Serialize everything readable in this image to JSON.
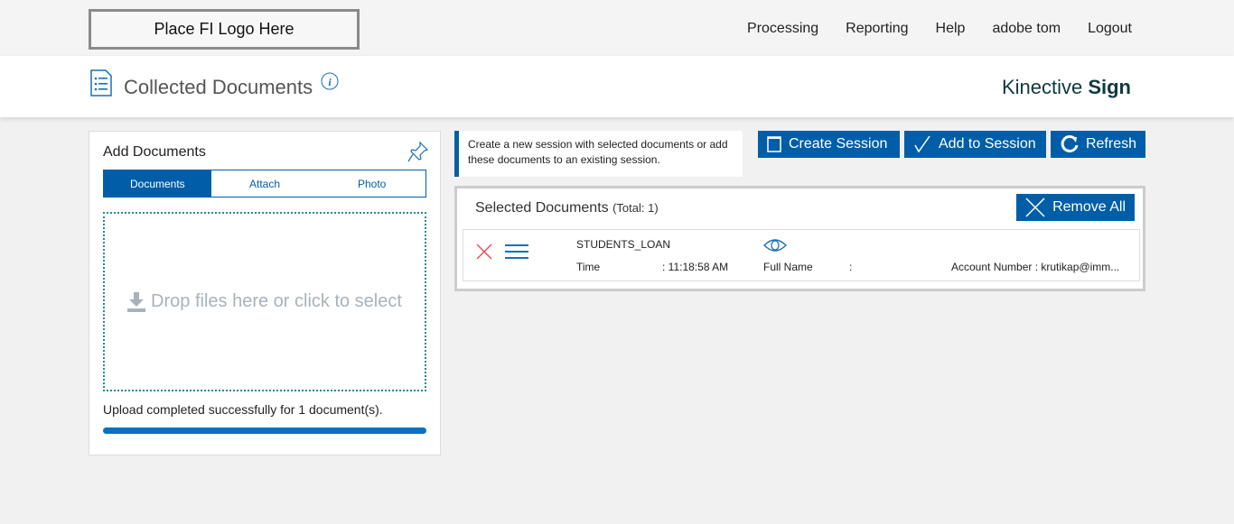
{
  "top": {
    "logo": "Place FI Logo Here",
    "nav": [
      "Processing",
      "Reporting",
      "Help",
      "adobe tom",
      "Logout"
    ]
  },
  "header": {
    "title": "Collected Documents",
    "brand_light": "Kinective ",
    "brand_bold": "Sign"
  },
  "add": {
    "title": "Add Documents",
    "tabs": [
      "Documents",
      "Attach",
      "Photo"
    ],
    "active_tab": "Documents",
    "drop": "Drop files here or click to select",
    "message": "Upload completed successfully for 1 document(s).",
    "progress_percent": 100
  },
  "session": {
    "info": "Create a new session with selected documents or add these documents to an existing session.",
    "create": "Create Session",
    "add": "Add to Session",
    "refresh": "Refresh"
  },
  "selected": {
    "title": "Selected Documents",
    "total": "(Total: 1)",
    "remove_all": "Remove All",
    "rows": [
      {
        "name": "STUDENTS_LOAN",
        "time_label": "Time",
        "time_value": ": 11:18:58 AM",
        "full_name_label": "Full Name",
        "full_name_value": ":",
        "account": "Account Number : krutikap@imm..."
      }
    ]
  },
  "colors": {
    "accent": "#005ea8",
    "remove": "#e0455a"
  }
}
